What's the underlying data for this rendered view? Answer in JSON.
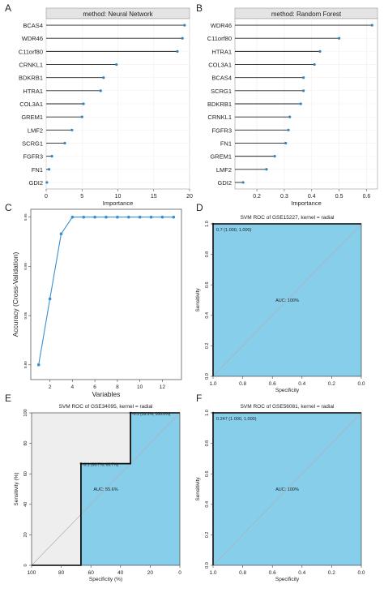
{
  "panel_letters": [
    "A",
    "B",
    "C",
    "D",
    "E",
    "F"
  ],
  "chart_data": [
    {
      "panel": "A",
      "type": "bar",
      "title": "method: Neural Network",
      "xlabel": "Importance",
      "xlim": [
        0,
        20
      ],
      "xticks": [
        0,
        5,
        10,
        15,
        20
      ],
      "categories": [
        "BCAS4",
        "WDR46",
        "C11orf80",
        "CRNKL1",
        "BDKRB1",
        "HTRA1",
        "COL3A1",
        "GREM1",
        "LMF2",
        "SCRG1",
        "FGFR3",
        "FN1",
        "GDI2"
      ],
      "values": [
        19.3,
        19.0,
        18.3,
        9.8,
        8.0,
        7.6,
        5.2,
        5.0,
        3.6,
        2.6,
        0.8,
        0.4,
        0.1
      ],
      "color": "#2e86c1"
    },
    {
      "panel": "B",
      "type": "bar",
      "title": "method: Random Forest",
      "xlabel": "Importance",
      "xlim": [
        0.12,
        0.64
      ],
      "xticks": [
        0.2,
        0.3,
        0.4,
        0.5,
        0.6
      ],
      "categories": [
        "WDR46",
        "C11orf80",
        "HTRA1",
        "COL3A1",
        "BCAS4",
        "SCRG1",
        "BDKRB1",
        "CRNKL1",
        "FGFR3",
        "FN1",
        "GREM1",
        "LMF2",
        "GDI2"
      ],
      "values": [
        0.62,
        0.5,
        0.43,
        0.41,
        0.37,
        0.37,
        0.36,
        0.32,
        0.315,
        0.305,
        0.265,
        0.235,
        0.15
      ],
      "color": "#2e86c1"
    },
    {
      "panel": "C",
      "type": "line",
      "xlabel": "Variables",
      "ylabel": "Accuracy (Cross-Validation)",
      "x": [
        1,
        2,
        3,
        4,
        5,
        6,
        7,
        8,
        9,
        10,
        11,
        12,
        13
      ],
      "y": [
        0.8,
        0.867,
        0.933,
        0.95,
        0.95,
        0.95,
        0.95,
        0.95,
        0.95,
        0.95,
        0.95,
        0.95,
        0.95
      ],
      "xticks": [
        2,
        4,
        6,
        8,
        10,
        12
      ],
      "yticks": [
        0.8,
        0.85,
        0.9,
        0.95
      ],
      "ytick_labels": [
        "0.80",
        "0.85",
        "0.90",
        "0.95"
      ],
      "xlim": [
        0.3,
        13.7
      ],
      "ylim": [
        0.785,
        0.958
      ],
      "color": "#3a8fd0"
    },
    {
      "panel": "D",
      "type": "area",
      "title": "SVM ROC of GSE15227, kernel = radial",
      "xlabel": "Specificity",
      "ylabel": "Sensitivity",
      "xticks": [
        1.0,
        0.8,
        0.6,
        0.4,
        0.2,
        0.0
      ],
      "xtick_labels": [
        "1.0",
        "0.8",
        "0.6",
        "0.4",
        "0.2",
        "0.0"
      ],
      "yticks": [
        0.0,
        0.2,
        0.4,
        0.6,
        0.8,
        1.0
      ],
      "ytick_labels": [
        "0.0",
        "0.2",
        "0.4",
        "0.6",
        "0.8",
        "1.0"
      ],
      "specificity": [
        1.0,
        1.0,
        0.0
      ],
      "sensitivity": [
        0.0,
        1.0,
        1.0
      ],
      "threshold_label": "0.7 (1.000, 1.000)",
      "threshold_point": [
        1.0,
        1.0
      ],
      "auc_label": "AUC: 100%",
      "fill": "#87ceeb"
    },
    {
      "panel": "E",
      "type": "area",
      "title": "SVM ROC of GSE34095, kernel = radial",
      "xlabel": "Specificity (%)",
      "ylabel": "Sensitivity (%)",
      "xticks": [
        100,
        80,
        60,
        40,
        20,
        0
      ],
      "xtick_labels": [
        "100",
        "80",
        "60",
        "40",
        "20",
        "0"
      ],
      "yticks": [
        0,
        20,
        40,
        60,
        80,
        100
      ],
      "ytick_labels": [
        "0",
        "20",
        "40",
        "60",
        "80",
        "100"
      ],
      "specificity": [
        100,
        66.7,
        66.7,
        33.3,
        33.3,
        0
      ],
      "sensitivity": [
        0,
        0,
        66.7,
        66.7,
        100,
        100
      ],
      "threshold_labels": [
        "-0.1 (33.3%, 100.0%)",
        "-0.1 (66.7%, 66.7%)"
      ],
      "threshold_points": [
        [
          33.3,
          100
        ],
        [
          66.7,
          66.7
        ]
      ],
      "auc_label": "AUC: 55.6%",
      "fill": "#87ceeb",
      "partial_fill": "#eeeeee"
    },
    {
      "panel": "F",
      "type": "area",
      "title": "SVM ROC of GSE56081, kernel = radial",
      "xlabel": "Specificity",
      "ylabel": "Sensitivity",
      "xticks": [
        1.0,
        0.8,
        0.6,
        0.4,
        0.2,
        0.0
      ],
      "xtick_labels": [
        "1.0",
        "0.8",
        "0.6",
        "0.4",
        "0.2",
        "0.0"
      ],
      "yticks": [
        0.0,
        0.2,
        0.4,
        0.6,
        0.8,
        1.0
      ],
      "ytick_labels": [
        "0.0",
        "0.2",
        "0.4",
        "0.6",
        "0.8",
        "1.0"
      ],
      "specificity": [
        1.0,
        1.0,
        0.0
      ],
      "sensitivity": [
        0.0,
        1.0,
        1.0
      ],
      "threshold_label": "0.247 (1.000, 1.000)",
      "threshold_point": [
        1.0,
        1.0
      ],
      "auc_label": "AUC: 100%",
      "fill": "#87ceeb"
    }
  ]
}
